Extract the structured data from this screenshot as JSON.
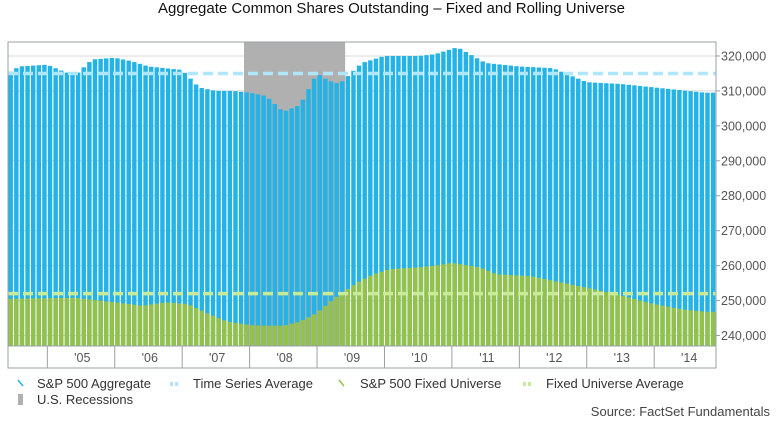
{
  "title": "Aggregate Common Shares Outstanding – Fixed and Rolling Universe",
  "source": "Source: FactSet Fundamentals",
  "colors": {
    "aggregate": "#23b3e6",
    "time_series_avg": "#aee6fb",
    "fixed_universe": "#93c14a",
    "fixed_avg": "#c9ea96",
    "recession": "#b0b0b0",
    "grid": "#d8d8d8",
    "frame": "#9aa0a6",
    "bar_gap": "#ffffff"
  },
  "legend": {
    "aggregate": "S&P 500 Aggregate",
    "time_series_avg": "Time Series Average",
    "fixed_universe": "S&P 500 Fixed Universe",
    "fixed_avg": "Fixed Universe Average",
    "recession": "U.S. Recessions"
  },
  "chart_data": {
    "type": "area",
    "title": "Aggregate Common Shares Outstanding – Fixed and Rolling Universe",
    "xlabel": "",
    "ylabel": "",
    "ylim": [
      237000,
      324000
    ],
    "yticks": [
      240000,
      250000,
      260000,
      270000,
      280000,
      290000,
      300000,
      310000,
      320000
    ],
    "ytick_labels": [
      "240,000",
      "250,000",
      "260,000",
      "270,000",
      "280,000",
      "290,000",
      "300,000",
      "310,000",
      "320,000"
    ],
    "xlim": [
      "2004-06",
      "2014-12"
    ],
    "xtick_labels": [
      "'05",
      "'06",
      "'07",
      "'08",
      "'09",
      "'10",
      "'11",
      "'12",
      "'13",
      "'14"
    ],
    "xtick_years": [
      2005,
      2006,
      2007,
      2008,
      2009,
      2010,
      2011,
      2012,
      2013,
      2014
    ],
    "grid": true,
    "legend_position": "bottom",
    "series": [
      {
        "name": "S&P 500 Aggregate",
        "style": "bars",
        "points": [
          [
            "2004-06",
            315000
          ],
          [
            "2004-08",
            317000
          ],
          [
            "2005-01",
            317500
          ],
          [
            "2005-04",
            315500
          ],
          [
            "2005-06",
            314500
          ],
          [
            "2005-09",
            319000
          ],
          [
            "2006-01",
            319500
          ],
          [
            "2006-04",
            318500
          ],
          [
            "2006-07",
            317000
          ],
          [
            "2006-10",
            316500
          ],
          [
            "2007-01",
            316000
          ],
          [
            "2007-04",
            311000
          ],
          [
            "2007-07",
            310000
          ],
          [
            "2007-10",
            310000
          ],
          [
            "2008-01",
            309500
          ],
          [
            "2008-04",
            308500
          ],
          [
            "2008-07",
            304000
          ],
          [
            "2008-10",
            306000
          ],
          [
            "2009-01",
            315000
          ],
          [
            "2009-03",
            313000
          ],
          [
            "2009-05",
            312000
          ],
          [
            "2009-09",
            318000
          ],
          [
            "2010-01",
            320000
          ],
          [
            "2010-07",
            320000
          ],
          [
            "2010-10",
            320500
          ],
          [
            "2011-02",
            322500
          ],
          [
            "2011-07",
            318000
          ],
          [
            "2012-01",
            317000
          ],
          [
            "2012-07",
            316500
          ],
          [
            "2013-01",
            312500
          ],
          [
            "2013-07",
            312000
          ],
          [
            "2014-01",
            311000
          ],
          [
            "2014-07",
            310000
          ],
          [
            "2014-10",
            309500
          ]
        ]
      },
      {
        "name": "Time Series Average",
        "style": "dashed",
        "value": 315000
      },
      {
        "name": "S&P 500 Fixed Universe",
        "style": "area",
        "points": [
          [
            "2004-06",
            250500
          ],
          [
            "2005-06",
            250800
          ],
          [
            "2006-01",
            249500
          ],
          [
            "2006-06",
            248500
          ],
          [
            "2006-10",
            249500
          ],
          [
            "2007-02",
            249000
          ],
          [
            "2007-06",
            246000
          ],
          [
            "2007-09",
            244000
          ],
          [
            "2008-01",
            243000
          ],
          [
            "2008-04",
            242800
          ],
          [
            "2008-07",
            242800
          ],
          [
            "2008-10",
            244000
          ],
          [
            "2009-01",
            246500
          ],
          [
            "2009-04",
            250500
          ],
          [
            "2009-08",
            255000
          ],
          [
            "2009-11",
            257500
          ],
          [
            "2010-02",
            259000
          ],
          [
            "2010-07",
            259500
          ],
          [
            "2010-10",
            260000
          ],
          [
            "2011-01",
            260800
          ],
          [
            "2011-06",
            259500
          ],
          [
            "2011-09",
            257500
          ],
          [
            "2012-03",
            257000
          ],
          [
            "2012-09",
            255000
          ],
          [
            "2013-03",
            253000
          ],
          [
            "2013-07",
            251500
          ],
          [
            "2014-01",
            249000
          ],
          [
            "2014-06",
            247500
          ],
          [
            "2014-10",
            246800
          ]
        ]
      },
      {
        "name": "Fixed Universe Average",
        "style": "dashed",
        "value": 252000
      }
    ],
    "recessions": [
      {
        "start": "2007-12",
        "end": "2009-06"
      }
    ]
  }
}
